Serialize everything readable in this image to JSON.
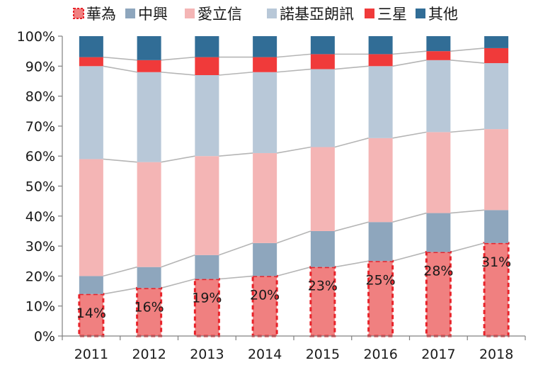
{
  "chart_data": {
    "type": "bar",
    "stacked": true,
    "categories": [
      "2011",
      "2012",
      "2013",
      "2014",
      "2015",
      "2016",
      "2017",
      "2018"
    ],
    "ylim": [
      0,
      100
    ],
    "yticks": [
      "0%",
      "10%",
      "20%",
      "30%",
      "40%",
      "50%",
      "60%",
      "70%",
      "80%",
      "90%",
      "100%"
    ],
    "grid": false,
    "legend_position": "top",
    "series": [
      {
        "name": "華為",
        "color": "#f08080",
        "border": "#e8232a",
        "dashed": true,
        "values": [
          14,
          16,
          19,
          20,
          23,
          25,
          28,
          31
        ]
      },
      {
        "name": "中興",
        "color": "#8ea6bd",
        "values": [
          6,
          7,
          8,
          11,
          12,
          13,
          13,
          11
        ]
      },
      {
        "name": "愛立信",
        "color": "#f4b5b5",
        "values": [
          39,
          35,
          33,
          30,
          28,
          28,
          27,
          27
        ]
      },
      {
        "name": "諾基亞朗訊",
        "color": "#b8c8d8",
        "values": [
          31,
          30,
          27,
          27,
          26,
          24,
          24,
          22
        ]
      },
      {
        "name": "三星",
        "color": "#f03a3a",
        "values": [
          3,
          4,
          6,
          5,
          5,
          4,
          3,
          5
        ]
      },
      {
        "name": "其他",
        "color": "#316d96",
        "values": [
          7,
          8,
          7,
          7,
          6,
          6,
          5,
          4
        ]
      }
    ],
    "data_labels": [
      "14%",
      "16%",
      "19%",
      "20%",
      "23%",
      "25%",
      "28%",
      "31%"
    ]
  }
}
